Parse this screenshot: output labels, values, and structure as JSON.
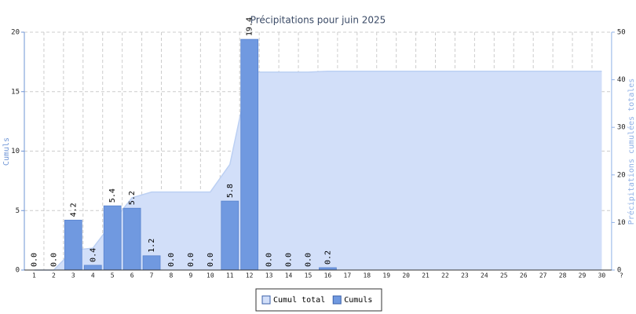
{
  "chart_data": {
    "type": "bar",
    "title": "Précipitations pour juin 2025",
    "ylabel": "Cumuls",
    "y2label": "Précipitations cumulées totales",
    "categories": [
      "1",
      "2",
      "3",
      "4",
      "5",
      "6",
      "7",
      "8",
      "9",
      "10",
      "11",
      "12",
      "13",
      "14",
      "15",
      "16",
      "17",
      "18",
      "19",
      "20",
      "21",
      "22",
      "23",
      "24",
      "25",
      "26",
      "27",
      "28",
      "29",
      "30",
      "?"
    ],
    "series": [
      {
        "name": "Cumul total",
        "type": "area",
        "axis": "y2",
        "color": "#d2dff9",
        "values": [
          0,
          0,
          4.2,
          4.6,
          10,
          15.2,
          16.4,
          16.4,
          16.4,
          16.4,
          22.2,
          41.6,
          41.6,
          41.6,
          41.6,
          41.8,
          41.8,
          41.8,
          41.8,
          41.8,
          41.8,
          41.8,
          41.8,
          41.8,
          41.8,
          41.8,
          41.8,
          41.8,
          41.8,
          41.8,
          null
        ]
      },
      {
        "name": "Cumuls",
        "type": "bar",
        "color": "#7099e0",
        "values": [
          0,
          0,
          4.2,
          0.4,
          5.4,
          5.2,
          1.2,
          0,
          0,
          0,
          5.8,
          19.4,
          0,
          0,
          0,
          0.2,
          null,
          null,
          null,
          null,
          null,
          null,
          null,
          null,
          null,
          null,
          null,
          null,
          null,
          null,
          null
        ],
        "value_labels": [
          "0.0",
          "0.0",
          "4.2",
          "0.4",
          "5.4",
          "5.2",
          "1.2",
          "0.0",
          "0.0",
          "0.0",
          "5.8",
          "19.4",
          "0.0",
          "0.0",
          "0.0",
          "0.2",
          null,
          null,
          null,
          null,
          null,
          null,
          null,
          null,
          null,
          null,
          null,
          null,
          null,
          null,
          null
        ]
      }
    ],
    "ylim": [
      0,
      20
    ],
    "yticks": [
      0,
      5,
      10,
      15,
      20
    ],
    "y2lim": [
      0,
      50
    ],
    "y2ticks": [
      0,
      10,
      20,
      30,
      40,
      50
    ],
    "grid": true,
    "legend": "bottom"
  }
}
